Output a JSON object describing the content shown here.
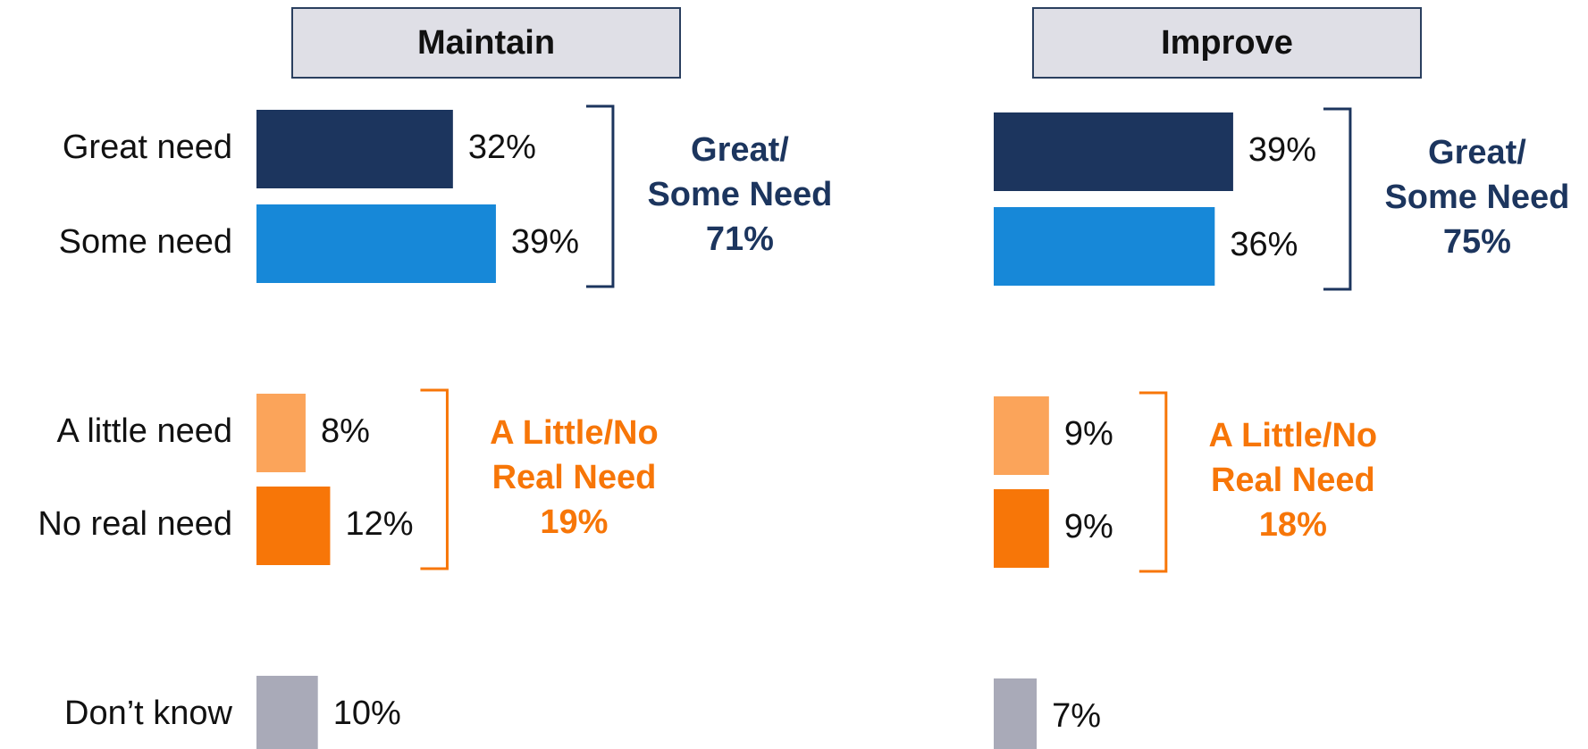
{
  "chart_data": [
    {
      "type": "bar",
      "title": "Maintain",
      "categories": [
        "Great need",
        "Some need",
        "A little need",
        "No real need",
        "Don’t know"
      ],
      "values": [
        32,
        39,
        8,
        12,
        10
      ],
      "value_labels": [
        "32%",
        "39%",
        "8%",
        "12%",
        "10%"
      ],
      "colors": [
        "#1c355e",
        "#1788d8",
        "#fba45a",
        "#f77608",
        "#a9aab8"
      ],
      "groups": [
        {
          "label_lines": [
            "Great/",
            "Some Need"
          ],
          "total": 71,
          "total_label": "71%",
          "color": "#1c355e"
        },
        {
          "label_lines": [
            "A Little/No",
            "Real Need"
          ],
          "total": 19,
          "total_label": "19%",
          "color": "#f77608"
        }
      ]
    },
    {
      "type": "bar",
      "title": "Improve",
      "values": [
        39,
        36,
        9,
        9,
        7
      ],
      "value_labels": [
        "39%",
        "36%",
        "9%",
        "9%",
        "7%"
      ],
      "colors": [
        "#1c355e",
        "#1788d8",
        "#fba45a",
        "#f77608",
        "#a9aab8"
      ],
      "groups": [
        {
          "label_lines": [
            "Great/",
            "Some Need"
          ],
          "total": 75,
          "total_label": "75%",
          "color": "#1c355e"
        },
        {
          "label_lines": [
            "A Little/No",
            "Real Need"
          ],
          "total": 18,
          "total_label": "18%",
          "color": "#f77608"
        }
      ]
    }
  ]
}
